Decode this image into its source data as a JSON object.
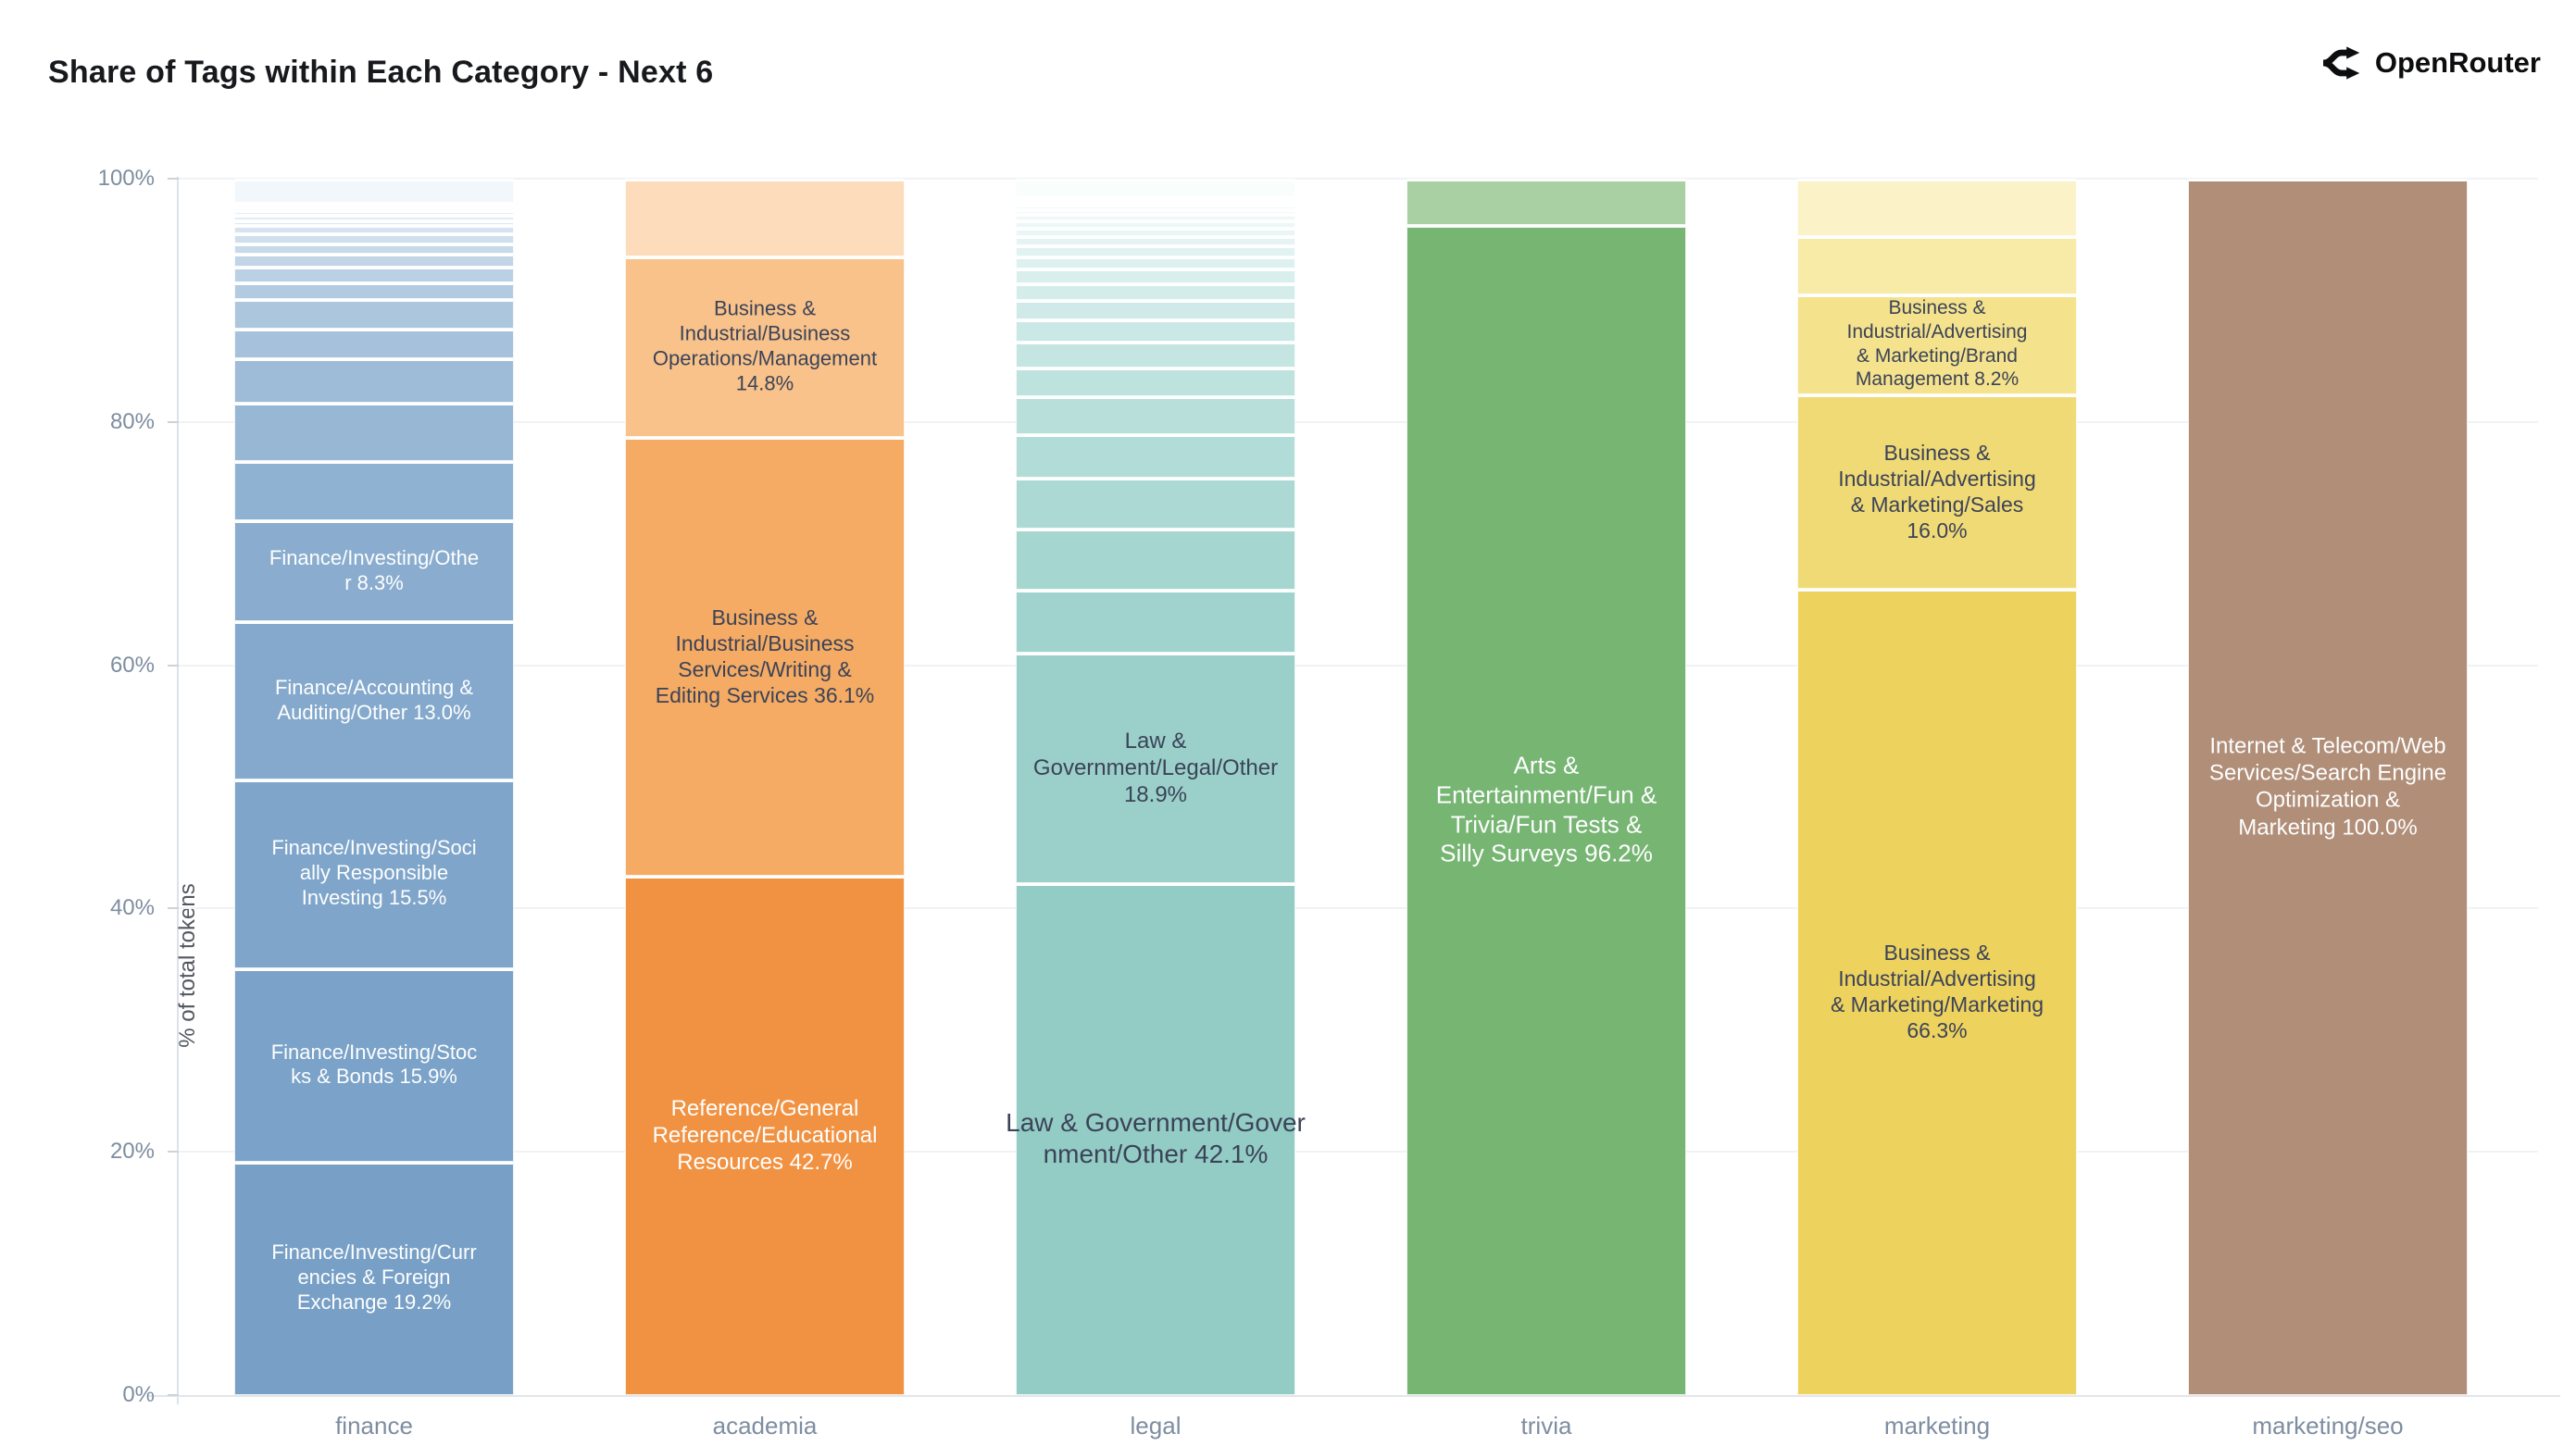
{
  "header": {
    "title": "Share of Tags within Each Category - Next 6",
    "brand": "OpenRouter"
  },
  "chart_data": {
    "type": "bar",
    "stacked": true,
    "title": "Share of Tags within Each Category - Next 6",
    "xlabel": "",
    "ylabel": "% of total tokens",
    "ylim": [
      0,
      100
    ],
    "grid": true,
    "legend": "none",
    "yticks": [
      0,
      20,
      40,
      60,
      80,
      100
    ],
    "ytick_labels": [
      "0%",
      "20%",
      "40%",
      "60%",
      "80%",
      "100%"
    ],
    "categories": [
      "finance",
      "academia",
      "legal",
      "trivia",
      "marketing",
      "marketing/seo"
    ],
    "bars": [
      {
        "category": "finance",
        "segments": [
          {
            "v": 19.2,
            "label": "Finance/Investing/Curr\nencies & Foreign\nExchange 19.2%",
            "color": "#78a0c6",
            "text": "#fdfefe",
            "fs": 22
          },
          {
            "v": 15.9,
            "label": "Finance/Investing/Stoc\nks & Bonds 15.9%",
            "color": "#7ba2c8",
            "text": "#fdfefe",
            "fs": 22
          },
          {
            "v": 15.5,
            "label": "Finance/Investing/Soci\nally Responsible\nInvesting 15.5%",
            "color": "#7fa5ca",
            "text": "#fdfefe",
            "fs": 22
          },
          {
            "v": 13.0,
            "label": "Finance/Accounting &\nAuditing/Other 13.0%",
            "color": "#84a9cc",
            "text": "#fdfefe",
            "fs": 22
          },
          {
            "v": 8.3,
            "label": "Finance/Investing/Othe\nr 8.3%",
            "color": "#8aadcf",
            "text": "#fdfefe",
            "fs": 22
          },
          {
            "v": 4.9,
            "label": "",
            "color": "#90b2d2"
          },
          {
            "v": 4.8,
            "label": "",
            "color": "#97b7d5"
          },
          {
            "v": 3.6,
            "label": "",
            "color": "#9ebcd8"
          },
          {
            "v": 2.5,
            "label": "",
            "color": "#a5c1db"
          },
          {
            "v": 2.4,
            "label": "",
            "color": "#acc6de"
          },
          {
            "v": 1.4,
            "label": "",
            "color": "#b3cbe1"
          },
          {
            "v": 1.3,
            "label": "",
            "color": "#bad0e4"
          },
          {
            "v": 1.0,
            "label": "",
            "color": "#c1d5e7"
          },
          {
            "v": 0.9,
            "label": "",
            "color": "#c8daea"
          },
          {
            "v": 0.8,
            "label": "",
            "color": "#cfdfed"
          },
          {
            "v": 0.7,
            "label": "",
            "color": "#d6e4f0"
          },
          {
            "v": 0.4,
            "label": "",
            "color": "#dce9f3"
          },
          {
            "v": 0.4,
            "label": "",
            "color": "#e1edf5"
          },
          {
            "v": 0.4,
            "label": "",
            "color": "#e6f0f7"
          },
          {
            "v": 0.3,
            "label": "",
            "color": "#eaf3f8"
          },
          {
            "v": 0.3,
            "label": "",
            "color": "#eef5fa"
          },
          {
            "v": 2.0,
            "label": "",
            "color": "#f2f7fb"
          }
        ]
      },
      {
        "category": "academia",
        "segments": [
          {
            "v": 42.7,
            "label": "Reference/General\nReference/Educational\nResources 42.7%",
            "color": "#f19242",
            "text": "#fdfefe",
            "fs": 24
          },
          {
            "v": 36.1,
            "label": "Business &\nIndustrial/Business\nServices/Writing &\nEditing Services 36.1%",
            "color": "#f5ab63",
            "text": "#3c4358",
            "fs": 23
          },
          {
            "v": 14.8,
            "label": "Business &\nIndustrial/Business\nOperations/Management\n14.8%",
            "color": "#f8c28a",
            "text": "#3c4358",
            "fs": 22
          },
          {
            "v": 6.4,
            "label": "",
            "color": "#fcdcbb"
          }
        ]
      },
      {
        "category": "legal",
        "segments": [
          {
            "v": 42.1,
            "label": "Law & Government/Gover\nnment/Other 42.1%",
            "color": "#93ccc5",
            "text": "#3c4358",
            "fs": 28
          },
          {
            "v": 18.9,
            "label": "Law &\nGovernment/Legal/Other\n18.9%",
            "color": "#9ad0c9",
            "text": "#3c4358",
            "fs": 24
          },
          {
            "v": 5.2,
            "label": "",
            "color": "#a0d3cd"
          },
          {
            "v": 5.0,
            "label": "",
            "color": "#a6d6d0"
          },
          {
            "v": 4.2,
            "label": "",
            "color": "#acd9d4"
          },
          {
            "v": 3.6,
            "label": "",
            "color": "#b2dcd7"
          },
          {
            "v": 3.1,
            "label": "",
            "color": "#b8dfda"
          },
          {
            "v": 2.4,
            "label": "",
            "color": "#bee2de"
          },
          {
            "v": 2.1,
            "label": "",
            "color": "#c4e5e1"
          },
          {
            "v": 1.8,
            "label": "",
            "color": "#cae8e5"
          },
          {
            "v": 1.6,
            "label": "",
            "color": "#cfeae8"
          },
          {
            "v": 1.4,
            "label": "",
            "color": "#d4edeb"
          },
          {
            "v": 1.2,
            "label": "",
            "color": "#d9efed"
          },
          {
            "v": 1.0,
            "label": "",
            "color": "#ddf1ef"
          },
          {
            "v": 0.9,
            "label": "",
            "color": "#e1f3f1"
          },
          {
            "v": 0.8,
            "label": "",
            "color": "#e5f4f3"
          },
          {
            "v": 0.7,
            "label": "",
            "color": "#e9f6f5"
          },
          {
            "v": 0.6,
            "label": "",
            "color": "#ecf7f6"
          },
          {
            "v": 0.5,
            "label": "",
            "color": "#eff8f7"
          },
          {
            "v": 0.4,
            "label": "",
            "color": "#f1f9f8"
          },
          {
            "v": 0.4,
            "label": "",
            "color": "#f3faf9"
          },
          {
            "v": 0.3,
            "label": "",
            "color": "#f5fbfa"
          },
          {
            "v": 0.3,
            "label": "",
            "color": "#f7fcfb"
          },
          {
            "v": 1.5,
            "label": "",
            "color": "#f9fdfc"
          }
        ]
      },
      {
        "category": "trivia",
        "segments": [
          {
            "v": 96.2,
            "label": "Arts &\nEntertainment/Fun &\nTrivia/Fun Tests &\nSilly Surveys 96.2%",
            "color": "#77b573",
            "text": "#fdfefe",
            "fs": 26
          },
          {
            "v": 3.8,
            "label": "",
            "color": "#a8d0a3"
          }
        ]
      },
      {
        "category": "marketing",
        "segments": [
          {
            "v": 66.3,
            "label": "Business &\nIndustrial/Advertising\n& Marketing/Marketing\n66.3%",
            "color": "#edd25e",
            "text": "#3c4358",
            "fs": 23
          },
          {
            "v": 16.0,
            "label": "Business &\nIndustrial/Advertising\n& Marketing/Sales\n16.0%",
            "color": "#f0da75",
            "text": "#3c4358",
            "fs": 23
          },
          {
            "v": 8.2,
            "label": "Business &\nIndustrial/Advertising\n& Marketing/Brand\nManagement 8.2%",
            "color": "#f4e28c",
            "text": "#3c4358",
            "fs": 21
          },
          {
            "v": 4.8,
            "label": "",
            "color": "#f8eaa7"
          },
          {
            "v": 4.7,
            "label": "",
            "color": "#fbf2c7"
          }
        ]
      },
      {
        "category": "marketing/seo",
        "segments": [
          {
            "v": 100.0,
            "label": "Internet & Telecom/Web\nServices/Search Engine\nOptimization &\nMarketing 100.0%",
            "color": "#b18e78",
            "text": "#fdfefe",
            "fs": 24
          }
        ]
      }
    ]
  }
}
